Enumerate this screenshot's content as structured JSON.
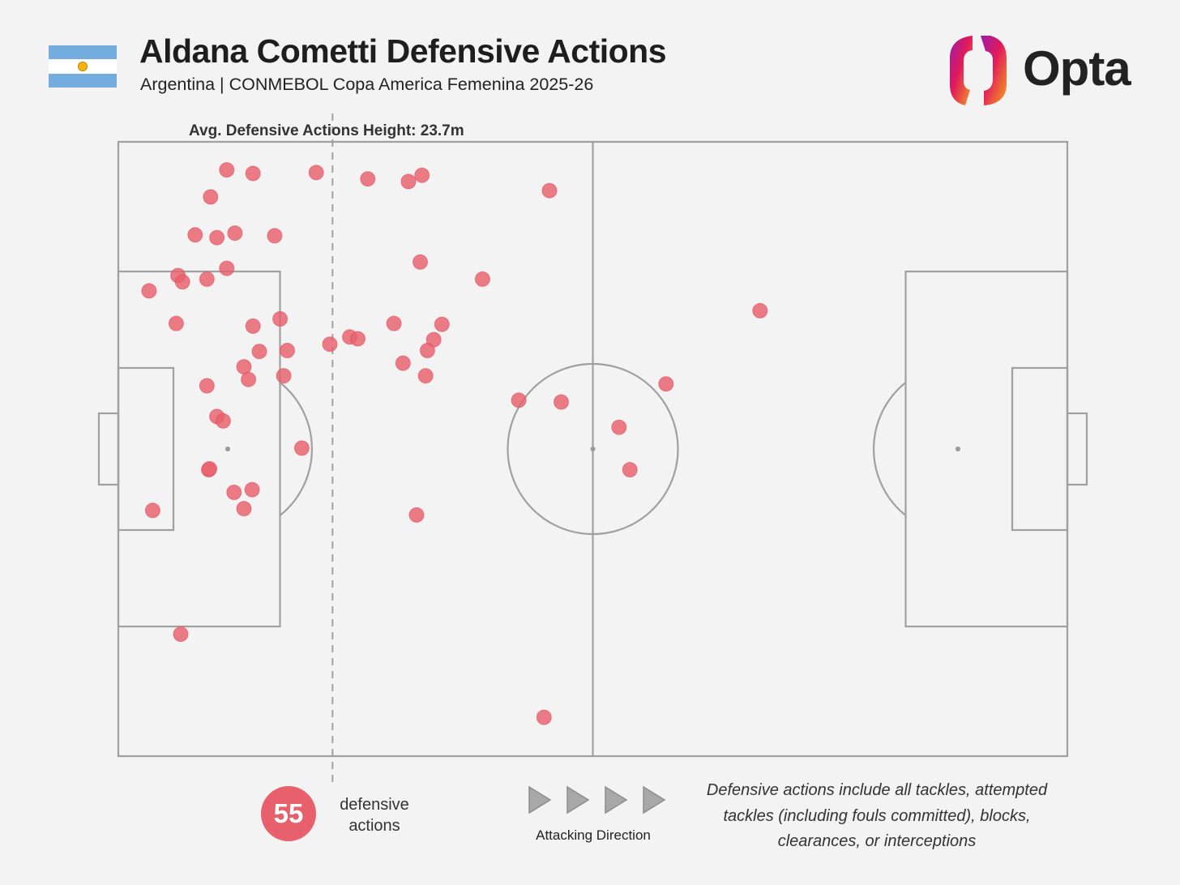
{
  "header": {
    "title": "Aldana Cometti Defensive Actions",
    "subtitle": "Argentina | CONMEBOL Copa America Femenina 2025-26",
    "flag_icon": "argentina-flag-icon",
    "brand_icon": "opta-logo-icon",
    "brand": "Opta"
  },
  "colors": {
    "background": "#f3f3f3",
    "pitch_lines": "#a0a0a0",
    "action_dot": "#e8606c",
    "flag_blue": "#74acdf",
    "flag_sun": "#f6b40e"
  },
  "chart_data": {
    "type": "scatter",
    "title": "Aldana Cometti Defensive Actions",
    "subtitle": "Argentina | CONMEBOL Copa America Femenina 2025-26",
    "pitch": {
      "length_m": 105,
      "width_m": 68,
      "attacking_direction": "left-to-right"
    },
    "average_line": {
      "label": "Avg. Defensive Actions Height: 23.7m",
      "x": 23.7
    },
    "x_unit": "metres from own goal line",
    "y_unit": "metres from top touchline",
    "points": [
      {
        "x": 12.0,
        "y": 3.1
      },
      {
        "x": 14.9,
        "y": 3.5
      },
      {
        "x": 21.9,
        "y": 3.4
      },
      {
        "x": 27.6,
        "y": 4.1
      },
      {
        "x": 32.1,
        "y": 4.4
      },
      {
        "x": 33.6,
        "y": 3.7
      },
      {
        "x": 47.7,
        "y": 5.4
      },
      {
        "x": 10.2,
        "y": 6.1
      },
      {
        "x": 8.5,
        "y": 10.3
      },
      {
        "x": 10.9,
        "y": 10.6
      },
      {
        "x": 12.9,
        "y": 10.1
      },
      {
        "x": 17.3,
        "y": 10.4
      },
      {
        "x": 12.0,
        "y": 14.0
      },
      {
        "x": 33.4,
        "y": 13.3
      },
      {
        "x": 6.6,
        "y": 14.8
      },
      {
        "x": 7.1,
        "y": 15.5
      },
      {
        "x": 9.8,
        "y": 15.2
      },
      {
        "x": 3.4,
        "y": 16.5
      },
      {
        "x": 40.3,
        "y": 15.2
      },
      {
        "x": 71.0,
        "y": 18.7
      },
      {
        "x": 6.4,
        "y": 20.1
      },
      {
        "x": 14.9,
        "y": 20.4
      },
      {
        "x": 17.9,
        "y": 19.6
      },
      {
        "x": 30.5,
        "y": 20.1
      },
      {
        "x": 35.8,
        "y": 20.2
      },
      {
        "x": 25.6,
        "y": 21.6
      },
      {
        "x": 26.5,
        "y": 21.8
      },
      {
        "x": 34.9,
        "y": 21.9
      },
      {
        "x": 23.4,
        "y": 22.4
      },
      {
        "x": 15.6,
        "y": 23.2
      },
      {
        "x": 18.7,
        "y": 23.1
      },
      {
        "x": 34.2,
        "y": 23.1
      },
      {
        "x": 31.5,
        "y": 24.5
      },
      {
        "x": 13.9,
        "y": 24.9
      },
      {
        "x": 14.4,
        "y": 26.3
      },
      {
        "x": 18.3,
        "y": 25.9
      },
      {
        "x": 34.0,
        "y": 25.9
      },
      {
        "x": 9.8,
        "y": 27.0
      },
      {
        "x": 60.6,
        "y": 26.8
      },
      {
        "x": 44.3,
        "y": 28.6
      },
      {
        "x": 49.0,
        "y": 28.8
      },
      {
        "x": 10.9,
        "y": 30.4
      },
      {
        "x": 11.6,
        "y": 30.9
      },
      {
        "x": 55.4,
        "y": 31.6
      },
      {
        "x": 20.3,
        "y": 33.9
      },
      {
        "x": 10.0,
        "y": 36.3
      },
      {
        "x": 56.6,
        "y": 36.3
      },
      {
        "x": 14.8,
        "y": 38.5
      },
      {
        "x": 12.8,
        "y": 38.8
      },
      {
        "x": 13.9,
        "y": 40.6
      },
      {
        "x": 3.8,
        "y": 40.8
      },
      {
        "x": 33.0,
        "y": 41.3
      },
      {
        "x": 6.9,
        "y": 54.5
      },
      {
        "x": 47.1,
        "y": 63.7
      },
      {
        "x": 10.1,
        "y": 36.2
      }
    ]
  },
  "summary": {
    "count": "55",
    "count_label": "defensive actions"
  },
  "direction": {
    "label": "Attacking Direction",
    "arrow_icon": "triangle-right-icon"
  },
  "footnote": "Defensive actions include all tackles, attempted tackles (including fouls committed), blocks, clearances, or interceptions"
}
